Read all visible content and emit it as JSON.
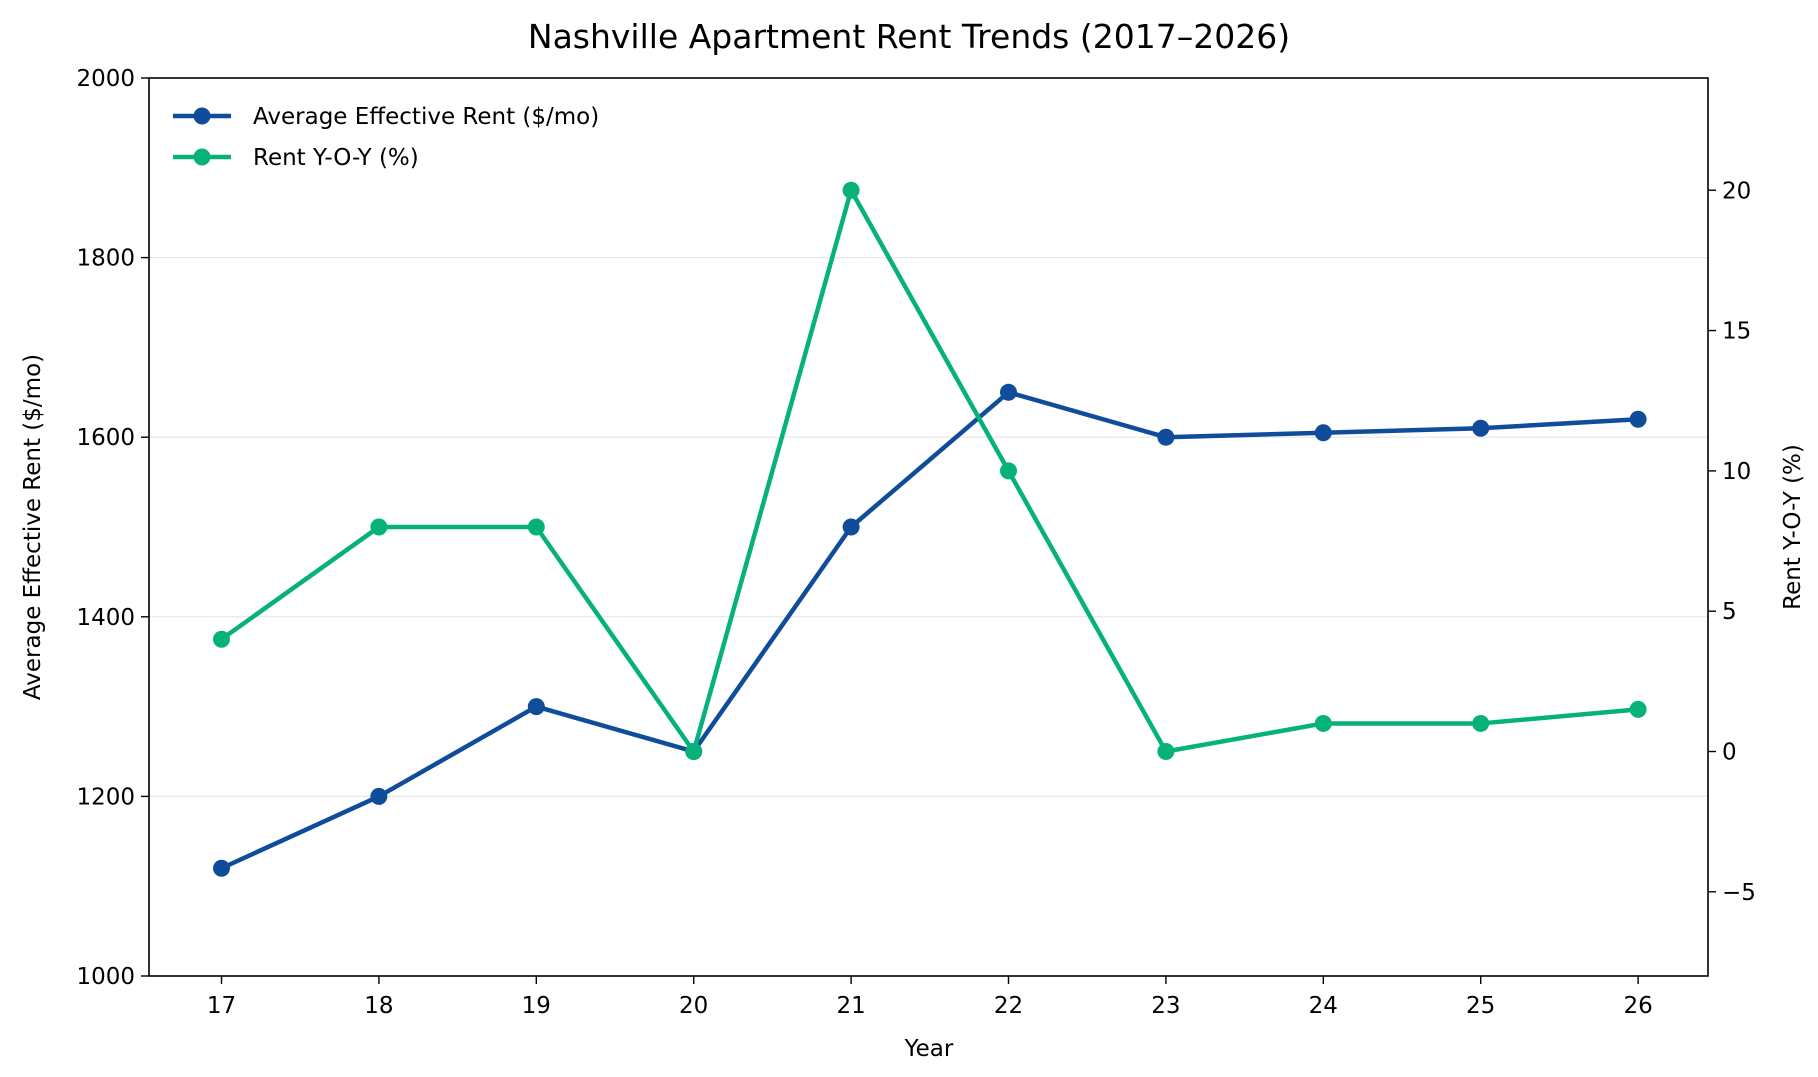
{
  "chart_data": {
    "type": "line",
    "title": "Nashville Apartment Rent Trends (2017–2026)",
    "xlabel": "Year",
    "ylabel": "Average Effective Rent ($/mo)",
    "ylabel_right": "Rent Y-O-Y (%)",
    "categories": [
      "17",
      "18",
      "19",
      "20",
      "21",
      "22",
      "23",
      "24",
      "25",
      "26"
    ],
    "x": [
      17,
      18,
      19,
      20,
      21,
      22,
      23,
      24,
      25,
      26
    ],
    "ylim": [
      1000,
      2000
    ],
    "ylim_right": [
      -8,
      24
    ],
    "yticks": [
      1000,
      1200,
      1400,
      1600,
      1800,
      2000
    ],
    "yticks_right": [
      -5,
      0,
      5,
      10,
      15,
      20
    ],
    "grid": "horizontal (left axis ticks)",
    "legend_position": "upper left",
    "series": [
      {
        "name": "Average Effective Rent ($/mo)",
        "axis": "left",
        "color": "#0F4C9A",
        "values": [
          1120,
          1200,
          1300,
          1250,
          1500,
          1650,
          1600,
          1605,
          1610,
          1620
        ]
      },
      {
        "name": "Rent Y-O-Y (%)",
        "axis": "right",
        "color": "#07B27A",
        "values": [
          4,
          8,
          8,
          0,
          20,
          10,
          0,
          1,
          1,
          1.5
        ]
      }
    ]
  },
  "labels": {
    "title": "Nashville Apartment Rent Trends (2017–2026)",
    "xlabel": "Year",
    "ylabel_left": "Average Effective Rent ($/mo)",
    "ylabel_right": "Rent Y-O-Y (%)",
    "legend": [
      "Average Effective Rent ($/mo)",
      "Rent Y-O-Y (%)"
    ]
  }
}
